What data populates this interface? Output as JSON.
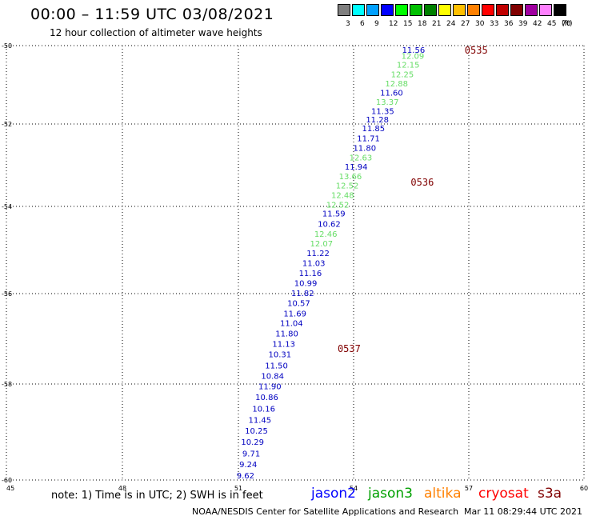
{
  "title": "00:00 – 11:59 UTC 03/08/2021",
  "subtitle": "12 hour collection of altimeter wave heights",
  "legend": {
    "bins": [
      {
        "label": "3",
        "color": "#7f7f7f"
      },
      {
        "label": "6",
        "color": "#00ffff"
      },
      {
        "label": "9",
        "color": "#00a0ff"
      },
      {
        "label": "12",
        "color": "#0000ff"
      },
      {
        "label": "15",
        "color": "#00ff00"
      },
      {
        "label": "18",
        "color": "#00c000"
      },
      {
        "label": "21",
        "color": "#008000"
      },
      {
        "label": "24",
        "color": "#ffff00"
      },
      {
        "label": "27",
        "color": "#ffc000"
      },
      {
        "label": "30",
        "color": "#ff8000"
      },
      {
        "label": "33",
        "color": "#ff0000"
      },
      {
        "label": "36",
        "color": "#c00000"
      },
      {
        "label": "39",
        "color": "#800000"
      },
      {
        "label": "42",
        "color": "#a000a0"
      },
      {
        "label": "45",
        "color": "#ff80ff"
      },
      {
        "label": "70",
        "color": "#000000"
      }
    ],
    "unit": "(ft)"
  },
  "chart_data": {
    "type": "map",
    "xlim": [
      45,
      60
    ],
    "ylim": [
      -60,
      -50
    ],
    "x_ticks": [
      "45",
      "48",
      "51",
      "54",
      "57",
      "60"
    ],
    "y_ticks": [
      "-50",
      "-52",
      "-54",
      "-56",
      "-58",
      "-60"
    ],
    "grid": true,
    "time_labels": [
      {
        "text": "0535",
        "lon": 56.9,
        "lat": -50.1
      },
      {
        "text": "0536",
        "lon": 55.5,
        "lat": -53.4
      },
      {
        "text": "0537",
        "lon": 53.6,
        "lat": -57.2
      }
    ],
    "observations": [
      {
        "swh": "11.56",
        "lon": 55.87,
        "lat": -50.1,
        "sat": "jason2"
      },
      {
        "swh": "12.09",
        "lon": 55.85,
        "lat": -50.25,
        "sat": "jason3"
      },
      {
        "swh": "12.15",
        "lon": 55.73,
        "lat": -50.48,
        "sat": "jason3"
      },
      {
        "swh": "12.25",
        "lon": 55.58,
        "lat": -50.72,
        "sat": "jason3"
      },
      {
        "swh": "12.88",
        "lon": 55.43,
        "lat": -50.96,
        "sat": "jason3"
      },
      {
        "swh": "11.60",
        "lon": 55.3,
        "lat": -51.19,
        "sat": "jason2"
      },
      {
        "swh": "13.37",
        "lon": 55.19,
        "lat": -51.43,
        "sat": "jason3"
      },
      {
        "swh": "11.35",
        "lon": 55.07,
        "lat": -51.66,
        "sat": "jason2"
      },
      {
        "swh": "11.28",
        "lon": 54.93,
        "lat": -51.88,
        "sat": "jason2"
      },
      {
        "swh": "11.85",
        "lon": 54.83,
        "lat": -52.1,
        "sat": "jason2"
      },
      {
        "swh": "11.71",
        "lon": 54.7,
        "lat": -52.34,
        "sat": "jason2"
      },
      {
        "swh": "11.80",
        "lon": 54.6,
        "lat": -52.57,
        "sat": "jason2"
      },
      {
        "swh": "12.63",
        "lon": 54.5,
        "lat": -52.81,
        "sat": "jason3"
      },
      {
        "swh": "11.94",
        "lon": 54.38,
        "lat": -53.03,
        "sat": "jason2"
      },
      {
        "swh": "13.66",
        "lon": 54.23,
        "lat": -53.26,
        "sat": "jason3"
      },
      {
        "swh": "12.52",
        "lon": 54.15,
        "lat": -53.49,
        "sat": "jason3"
      },
      {
        "swh": "12.48",
        "lon": 54.03,
        "lat": -53.72,
        "sat": "jason3"
      },
      {
        "swh": "12.52",
        "lon": 53.9,
        "lat": -53.95,
        "sat": "jason3"
      },
      {
        "swh": "11.59",
        "lon": 53.8,
        "lat": -54.16,
        "sat": "jason2"
      },
      {
        "swh": "10.62",
        "lon": 53.68,
        "lat": -54.39,
        "sat": "jason2"
      },
      {
        "swh": "12.46",
        "lon": 53.59,
        "lat": -54.62,
        "sat": "jason3"
      },
      {
        "swh": "12.07",
        "lon": 53.48,
        "lat": -54.84,
        "sat": "jason3"
      },
      {
        "swh": "11.22",
        "lon": 53.39,
        "lat": -55.06,
        "sat": "jason2"
      },
      {
        "swh": "11.03",
        "lon": 53.28,
        "lat": -55.29,
        "sat": "jason2"
      },
      {
        "swh": "11.16",
        "lon": 53.19,
        "lat": -55.52,
        "sat": "jason2"
      },
      {
        "swh": "10.99",
        "lon": 53.07,
        "lat": -55.75,
        "sat": "jason2"
      },
      {
        "swh": "11.82",
        "lon": 52.99,
        "lat": -55.98,
        "sat": "jason2"
      },
      {
        "swh": "10.57",
        "lon": 52.89,
        "lat": -56.2,
        "sat": "jason2"
      },
      {
        "swh": "11.69",
        "lon": 52.79,
        "lat": -56.43,
        "sat": "jason2"
      },
      {
        "swh": "11.04",
        "lon": 52.7,
        "lat": -56.65,
        "sat": "jason2"
      },
      {
        "swh": "11.80",
        "lon": 52.58,
        "lat": -56.88,
        "sat": "jason2"
      },
      {
        "swh": "11.13",
        "lon": 52.5,
        "lat": -57.11,
        "sat": "jason2"
      },
      {
        "swh": "10.31",
        "lon": 52.4,
        "lat": -57.34,
        "sat": "jason2"
      },
      {
        "swh": "11.50",
        "lon": 52.31,
        "lat": -57.58,
        "sat": "jason2"
      },
      {
        "swh": "10.84",
        "lon": 52.21,
        "lat": -57.81,
        "sat": "jason2"
      },
      {
        "swh": "11.90",
        "lon": 52.14,
        "lat": -58.04,
        "sat": "jason2"
      },
      {
        "swh": "10.86",
        "lon": 52.06,
        "lat": -58.27,
        "sat": "jason2"
      },
      {
        "swh": "10.16",
        "lon": 51.98,
        "lat": -58.51,
        "sat": "jason2"
      },
      {
        "swh": "11.45",
        "lon": 51.88,
        "lat": -58.74,
        "sat": "jason2"
      },
      {
        "swh": "10.25",
        "lon": 51.79,
        "lat": -58.97,
        "sat": "jason2"
      },
      {
        "swh": "10.29",
        "lon": 51.69,
        "lat": -59.2,
        "sat": "jason2"
      },
      {
        "swh": "9.71",
        "lon": 51.59,
        "lat": -59.44,
        "sat": "jason2"
      },
      {
        "swh": "9.24",
        "lon": 51.51,
        "lat": -59.67,
        "sat": "jason2"
      },
      {
        "swh": "9.62",
        "lon": 51.44,
        "lat": -59.9,
        "sat": "jason2"
      }
    ]
  },
  "note": "note:  1) Time is in UTC;  2) SWH is in feet",
  "satellites": [
    {
      "name": "jason2",
      "color": "#0000ff"
    },
    {
      "name": "jason3",
      "color": "#00a000"
    },
    {
      "name": "altika",
      "color": "#ff8000"
    },
    {
      "name": "cryosat",
      "color": "#ff0000"
    },
    {
      "name": "s3a",
      "color": "#800000"
    }
  ],
  "colors": {
    "time_label": "#800000",
    "jason2_text": "#0000c0",
    "jason3_text": "#66dd66"
  },
  "footer": "NOAA/NESDIS Center for Satellite Applications and Research",
  "timestamp": "Mar 11 08:29:44 UTC 2021"
}
